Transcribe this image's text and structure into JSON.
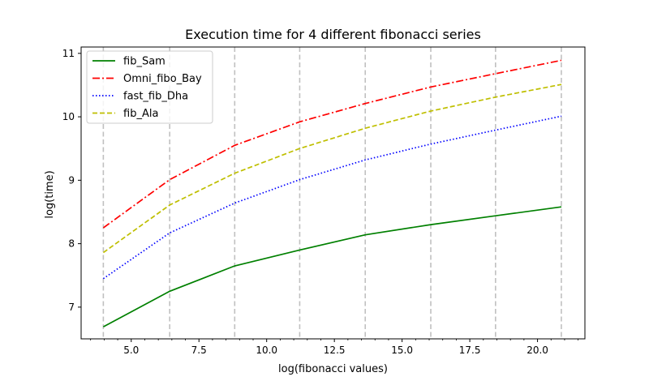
{
  "chart_data": {
    "type": "line",
    "title": "Execution time for 4 different fibonacci series",
    "xlabel": "log(fibonacci values)",
    "ylabel": "log(time)",
    "xlim": [
      3.15,
      21.75
    ],
    "ylim": [
      6.5,
      11.1
    ],
    "x_ticks": [
      5.0,
      7.5,
      10.0,
      12.5,
      15.0,
      17.5,
      20.0
    ],
    "x_tick_labels": [
      "5.0",
      "7.5",
      "10.0",
      "12.5",
      "15.0",
      "17.5",
      "20.0"
    ],
    "y_ticks": [
      7,
      8,
      9,
      10,
      11
    ],
    "y_tick_labels": [
      "7",
      "8",
      "9",
      "10",
      "11"
    ],
    "vlines": [
      3.97,
      6.42,
      8.82,
      11.22,
      13.64,
      16.06,
      18.45,
      20.88
    ],
    "vline_color": "#c0c0c0",
    "x": [
      3.97,
      6.42,
      8.82,
      11.22,
      13.64,
      16.06,
      18.45,
      20.88
    ],
    "series": [
      {
        "name": "fib_Sam",
        "color": "#008000",
        "dash": "solid",
        "values": [
          6.69,
          7.25,
          7.65,
          7.9,
          8.14,
          8.3,
          8.44,
          8.58
        ]
      },
      {
        "name": "Omni_fibo_Bay",
        "color": "#ff0000",
        "dash": "dashdot",
        "values": [
          8.25,
          9.01,
          9.55,
          9.92,
          10.21,
          10.47,
          10.68,
          10.89
        ]
      },
      {
        "name": "fast_fib_Dha",
        "color": "#0000ff",
        "dash": "dotted",
        "values": [
          7.45,
          8.17,
          8.64,
          9.01,
          9.32,
          9.57,
          9.79,
          10.01
        ]
      },
      {
        "name": "fib_Ala",
        "color": "#bfbf00",
        "dash": "dashed",
        "values": [
          7.86,
          8.61,
          9.11,
          9.5,
          9.82,
          10.09,
          10.31,
          10.51
        ]
      }
    ],
    "legend_position": "upper-left",
    "grid": false
  }
}
